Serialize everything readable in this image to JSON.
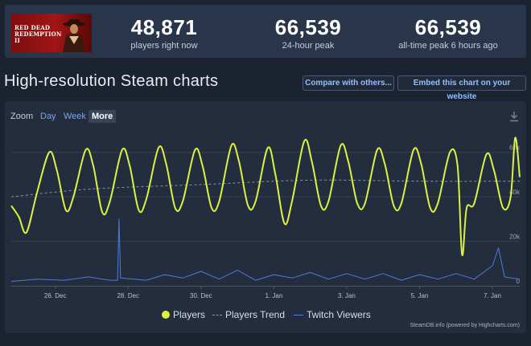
{
  "game": {
    "logo_text": "RED DEAD REDEMPTION II"
  },
  "stats": [
    {
      "value": "48,871",
      "label": "players right now"
    },
    {
      "value": "66,539",
      "label": "24-hour peak"
    },
    {
      "value": "66,539",
      "label": "all-time peak 6 hours ago"
    }
  ],
  "page": {
    "title": "High-resolution Steam charts",
    "compare_label": "Compare with others...",
    "embed_label": "Embed this chart on your website"
  },
  "zoom": {
    "label": "Zoom",
    "options": [
      "Day",
      "Week",
      "More"
    ],
    "active": "More"
  },
  "colors": {
    "players": "#dcf23d",
    "trend": "#8a93a3",
    "twitch": "#4d7dd6",
    "accent": "#8fc0ff"
  },
  "chart_data": {
    "type": "line",
    "title": "",
    "x_type": "datetime",
    "xlim": [
      "2023-12-24T19:00",
      "2024-01-07T18:00"
    ],
    "x_ticks": [
      "26. Dec",
      "28. Dec",
      "30. Dec",
      "1. Jan",
      "3. Jan",
      "5. Jan",
      "7. Jan"
    ],
    "y_ticks": [
      "0",
      "20k",
      "40k",
      "60k"
    ],
    "ylim": [
      0,
      70000
    ],
    "grid": true,
    "legend_position": "bottom-center",
    "series": [
      {
        "name": "Players",
        "color": "#dcf23d",
        "points": [
          [
            "2023-12-24T19:00",
            36000
          ],
          [
            "2023-12-25T00:00",
            31000
          ],
          [
            "2023-12-25T05:00",
            24000
          ],
          [
            "2023-12-25T12:00",
            42000
          ],
          [
            "2023-12-25T20:00",
            60000
          ],
          [
            "2023-12-26T01:00",
            52000
          ],
          [
            "2023-12-26T07:00",
            34000
          ],
          [
            "2023-12-26T12:00",
            40000
          ],
          [
            "2023-12-26T20:00",
            61000
          ],
          [
            "2023-12-27T01:00",
            54000
          ],
          [
            "2023-12-27T07:00",
            33000
          ],
          [
            "2023-12-27T12:00",
            38000
          ],
          [
            "2023-12-27T20:00",
            61000
          ],
          [
            "2023-12-28T01:00",
            54000
          ],
          [
            "2023-12-28T07:00",
            34000
          ],
          [
            "2023-12-28T12:00",
            39000
          ],
          [
            "2023-12-28T20:00",
            62000
          ],
          [
            "2023-12-29T01:00",
            55000
          ],
          [
            "2023-12-29T07:00",
            35000
          ],
          [
            "2023-12-29T12:00",
            38000
          ],
          [
            "2023-12-29T20:00",
            61000
          ],
          [
            "2023-12-30T01:00",
            54000
          ],
          [
            "2023-12-30T07:00",
            35000
          ],
          [
            "2023-12-30T12:00",
            38000
          ],
          [
            "2023-12-30T20:00",
            63000
          ],
          [
            "2023-12-31T01:00",
            56000
          ],
          [
            "2023-12-31T07:00",
            36000
          ],
          [
            "2023-12-31T12:00",
            38000
          ],
          [
            "2023-12-31T20:00",
            62000
          ],
          [
            "2024-01-01T01:00",
            50000
          ],
          [
            "2024-01-01T07:00",
            28000
          ],
          [
            "2024-01-01T12:00",
            38000
          ],
          [
            "2024-01-01T20:00",
            65000
          ],
          [
            "2024-01-02T01:00",
            56000
          ],
          [
            "2024-01-02T07:00",
            36000
          ],
          [
            "2024-01-02T12:00",
            38000
          ],
          [
            "2024-01-02T20:00",
            63000
          ],
          [
            "2024-01-03T01:00",
            56000
          ],
          [
            "2024-01-03T07:00",
            37000
          ],
          [
            "2024-01-03T12:00",
            37000
          ],
          [
            "2024-01-03T20:00",
            61000
          ],
          [
            "2024-01-04T01:00",
            55000
          ],
          [
            "2024-01-04T07:00",
            36000
          ],
          [
            "2024-01-04T12:00",
            37000
          ],
          [
            "2024-01-04T20:00",
            61000
          ],
          [
            "2024-01-05T01:00",
            55000
          ],
          [
            "2024-01-05T07:00",
            35000
          ],
          [
            "2024-01-05T12:00",
            37000
          ],
          [
            "2024-01-05T20:00",
            60000
          ],
          [
            "2024-01-06T01:00",
            54000
          ],
          [
            "2024-01-06T04:00",
            14000
          ],
          [
            "2024-01-06T07:00",
            35000
          ],
          [
            "2024-01-06T12:00",
            37000
          ],
          [
            "2024-01-06T20:00",
            59000
          ],
          [
            "2024-01-07T01:00",
            52000
          ],
          [
            "2024-01-07T07:00",
            35000
          ],
          [
            "2024-01-07T12:00",
            40000
          ],
          [
            "2024-01-07T15:00",
            66539
          ],
          [
            "2024-01-07T18:00",
            48871
          ]
        ]
      },
      {
        "name": "Players Trend",
        "color": "#8a93a3",
        "points": [
          [
            "2023-12-24T19:00",
            40000
          ],
          [
            "2023-12-27T00:00",
            43500
          ],
          [
            "2023-12-30T00:00",
            45500
          ],
          [
            "2024-01-02T00:00",
            47500
          ],
          [
            "2024-01-05T00:00",
            47000
          ],
          [
            "2024-01-07T18:00",
            47000
          ]
        ]
      },
      {
        "name": "Twitch Viewers",
        "color": "#4d7dd6",
        "points": [
          [
            "2023-12-24T19:00",
            2000
          ],
          [
            "2023-12-25T12:00",
            3000
          ],
          [
            "2023-12-26T06:00",
            2500
          ],
          [
            "2023-12-26T22:00",
            4000
          ],
          [
            "2023-12-27T12:00",
            2500
          ],
          [
            "2023-12-27T17:00",
            2500
          ],
          [
            "2023-12-27T18:00",
            30000
          ],
          [
            "2023-12-27T19:00",
            3500
          ],
          [
            "2023-12-28T12:00",
            2500
          ],
          [
            "2023-12-29T00:00",
            5000
          ],
          [
            "2023-12-29T12:00",
            3500
          ],
          [
            "2023-12-30T00:00",
            6500
          ],
          [
            "2023-12-30T12:00",
            3000
          ],
          [
            "2023-12-31T00:00",
            7000
          ],
          [
            "2023-12-31T12:00",
            2500
          ],
          [
            "2024-01-01T00:00",
            5000
          ],
          [
            "2024-01-01T12:00",
            3500
          ],
          [
            "2024-01-02T00:00",
            6000
          ],
          [
            "2024-01-02T12:00",
            3000
          ],
          [
            "2024-01-03T00:00",
            5500
          ],
          [
            "2024-01-03T12:00",
            3000
          ],
          [
            "2024-01-04T00:00",
            5500
          ],
          [
            "2024-01-04T12:00",
            2500
          ],
          [
            "2024-01-05T00:00",
            5000
          ],
          [
            "2024-01-05T12:00",
            3000
          ],
          [
            "2024-01-06T00:00",
            5500
          ],
          [
            "2024-01-06T12:00",
            3000
          ],
          [
            "2024-01-07T00:00",
            9000
          ],
          [
            "2024-01-07T04:00",
            17000
          ],
          [
            "2024-01-07T08:00",
            4000
          ],
          [
            "2024-01-07T18:00",
            3000
          ]
        ]
      }
    ]
  },
  "legend": [
    "Players",
    "Players Trend",
    "Twitch Viewers"
  ],
  "credit": "SteamDB.info (powered by Highcharts.com)"
}
